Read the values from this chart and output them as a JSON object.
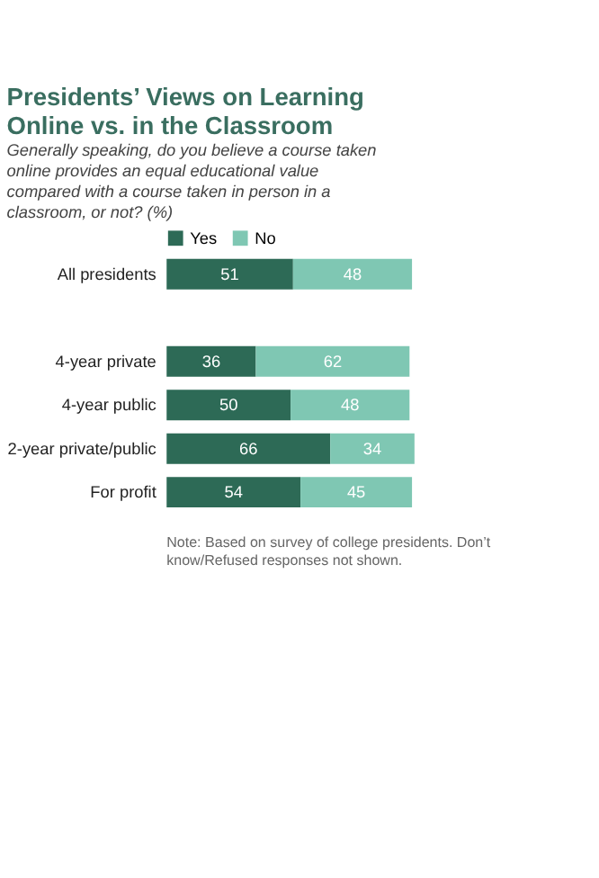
{
  "chart_data": {
    "type": "bar",
    "orientation": "horizontal",
    "stacked": true,
    "title": "Presidents’ Views on Learning Online vs. in the Classroom",
    "subtitle": "Generally speaking, do you believe a course taken online provides an equal educational value compared with a course taken in person in a classroom, or not? (%)",
    "categories": [
      "All presidents",
      null,
      "4-year private",
      "4-year public",
      "2-year private/public",
      "For profit"
    ],
    "series": [
      {
        "name": "Yes",
        "color": "#2d6a56",
        "values": [
          51,
          null,
          36,
          50,
          66,
          54
        ]
      },
      {
        "name": "No",
        "color": "#7fc7b3",
        "values": [
          48,
          null,
          62,
          48,
          34,
          45
        ]
      }
    ],
    "data_labels": true,
    "legend": "top",
    "grid": false,
    "annotations": [
      "Note: Based on survey of college presidents. Don’t know/Refused responses not shown."
    ]
  }
}
